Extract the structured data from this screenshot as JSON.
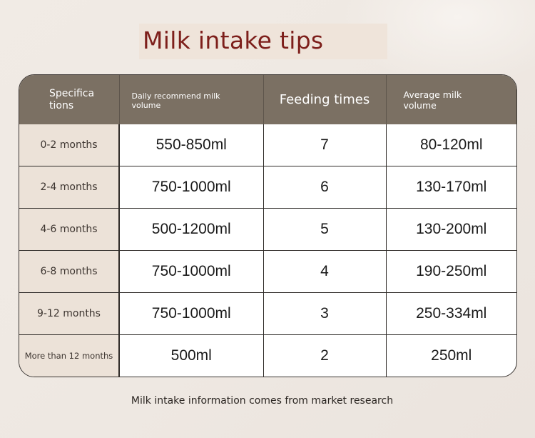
{
  "title": "Milk intake tips",
  "table": {
    "headers": {
      "spec": "Specifica tions",
      "daily": "Daily recommend milk volume",
      "feeding": "Feeding times",
      "average": "Average milk volume"
    },
    "rows": [
      {
        "spec": "0-2 months",
        "daily": "550-850ml",
        "feeding": "7",
        "average": "80-120ml"
      },
      {
        "spec": "2-4 months",
        "daily": "750-1000ml",
        "feeding": "6",
        "average": "130-170ml"
      },
      {
        "spec": "4-6 months",
        "daily": "500-1200ml",
        "feeding": "5",
        "average": "130-200ml"
      },
      {
        "spec": "6-8 months",
        "daily": "750-1000ml",
        "feeding": "4",
        "average": "190-250ml"
      },
      {
        "spec": "9-12 months",
        "daily": "750-1000ml",
        "feeding": "3",
        "average": "250-334ml"
      },
      {
        "spec": "More than 12 months",
        "daily": "500ml",
        "feeding": "2",
        "average": "250ml"
      }
    ]
  },
  "footer": "Milk intake information comes from market research",
  "colors": {
    "title": "#7d1f1b",
    "header_bg": "#7b7063",
    "spec_col_bg": "#ece2d8",
    "page_bg": "#efe9e3"
  }
}
